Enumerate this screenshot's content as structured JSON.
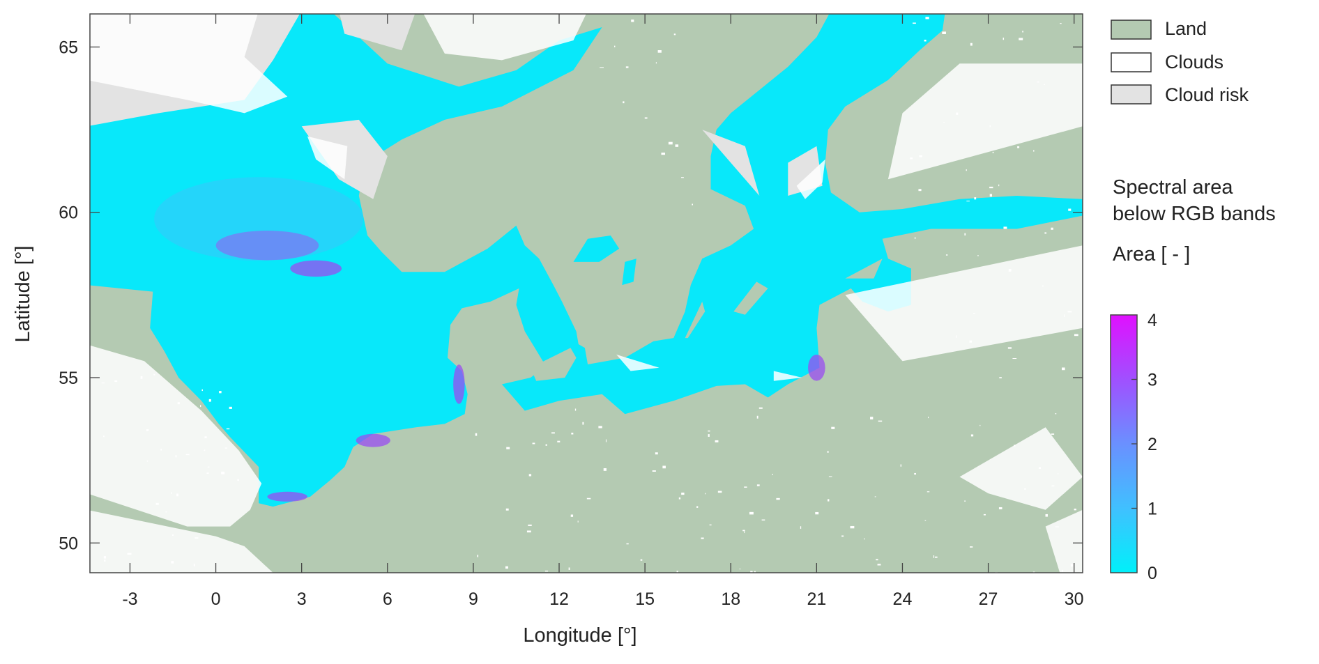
{
  "chart_data": {
    "type": "heatmap",
    "description_kind": "geographic map",
    "xlabel": "Longitude  [°]",
    "ylabel": "Latitude  [°]",
    "xlim": [
      -4.4,
      30.3
    ],
    "ylim": [
      49.1,
      66.0
    ],
    "xticks": [
      -3,
      0,
      3,
      6,
      9,
      12,
      15,
      18,
      21,
      24,
      27,
      30
    ],
    "xtick_labels": [
      "-3",
      "0",
      "3",
      "6",
      "9",
      "12",
      "15",
      "18",
      "21",
      "24",
      "27",
      "30"
    ],
    "yticks": [
      50,
      55,
      60,
      65
    ],
    "ytick_labels": [
      "50",
      "55",
      "60",
      "65"
    ],
    "grid": false,
    "legend": {
      "placement": "right",
      "items": [
        {
          "label": "Land",
          "color": "#b4cab2"
        },
        {
          "label": "Clouds",
          "color": "#ffffff"
        },
        {
          "label": "Cloud risk",
          "color": "#e3e3e3"
        }
      ]
    },
    "colorbar": {
      "title_line1": "Spectral area",
      "title_line2": "below RGB bands",
      "label": "Area  [ - ]",
      "range": [
        0,
        4
      ],
      "ticks": [
        0,
        1,
        2,
        3,
        4
      ],
      "tick_labels": [
        "0",
        "1",
        "2",
        "3",
        "4"
      ],
      "colormap": [
        "#00f0fa",
        "#40b8ff",
        "#6a90ff",
        "#a050ff",
        "#e010ff"
      ]
    },
    "colors": {
      "sea": "#08e8fa",
      "land": "#b4cab2",
      "clouds": "#ffffff",
      "cloud_risk": "#e3e3e3",
      "high_area": "#9a4cf0"
    }
  }
}
